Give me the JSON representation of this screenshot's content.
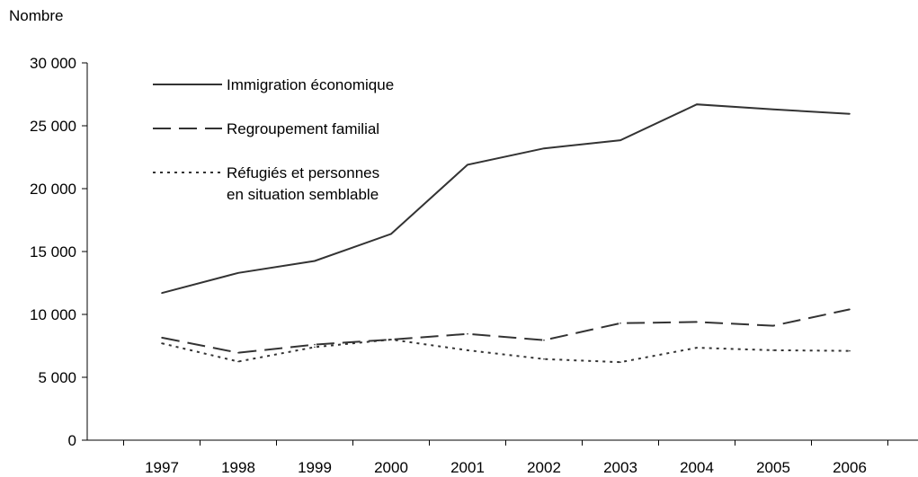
{
  "chart_data": {
    "type": "line",
    "title": "",
    "ylabel": "Nombre",
    "xlabel": "",
    "ylim": [
      0,
      30000
    ],
    "y_ticks": [
      0,
      5000,
      10000,
      15000,
      20000,
      25000,
      30000
    ],
    "y_tick_labels": [
      "0",
      "5 000",
      "10 000",
      "15 000",
      "20 000",
      "25 000",
      "30 000"
    ],
    "categories": [
      "1997",
      "1998",
      "1999",
      "2000",
      "2001",
      "2002",
      "2003",
      "2004",
      "2005",
      "2006"
    ],
    "grid": false,
    "legend_position": "top-left",
    "series": [
      {
        "name": "Immigration économique",
        "name_lines": [
          "Immigration économique"
        ],
        "style": "solid",
        "color": "#333333",
        "values": [
          11700,
          13300,
          14250,
          16400,
          21900,
          23200,
          23850,
          26700,
          26300,
          25950
        ]
      },
      {
        "name": "Regroupement familial",
        "name_lines": [
          "Regroupement familial"
        ],
        "style": "dashed",
        "color": "#333333",
        "values": [
          8150,
          6950,
          7600,
          8000,
          8450,
          7950,
          9300,
          9400,
          9100,
          10400
        ]
      },
      {
        "name": "Réfugiés et personnes en situation semblable",
        "name_lines": [
          "Réfugiés et personnes",
          "en situation semblable"
        ],
        "style": "dotted",
        "color": "#333333",
        "values": [
          7700,
          6250,
          7400,
          8000,
          7150,
          6450,
          6200,
          7350,
          7150,
          7100
        ]
      }
    ]
  }
}
